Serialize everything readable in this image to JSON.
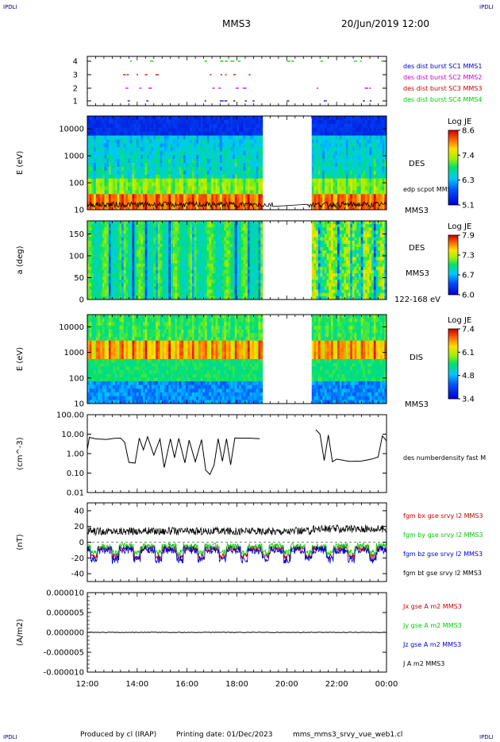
{
  "header": {
    "corner_left": "IPDLI",
    "corner_right": "IPDLI",
    "title": "MMS3",
    "date": "20/Jun/2019 12:00"
  },
  "footer": {
    "produced": "Produced by cl (IRAP)",
    "printing": "Printing date: 01/Dec/2023",
    "file": "mms_mms3_srvy_vue_web1.cl",
    "corner_left": "IPDLI",
    "corner_right": "IPDLI"
  },
  "colors": {
    "mms1": "#0000cc",
    "mms2": "#cc00cc",
    "mms3": "#cc0000",
    "mms4": "#00cc00"
  },
  "chart_data": [
    {
      "type": "scatter",
      "id": "burst",
      "yticks": [
        "1",
        "2",
        "3",
        "4"
      ],
      "series": [
        {
          "name": "des dist burst SC1 MMS1",
          "color": "#0000cc"
        },
        {
          "name": "des dist burst SC2 MMS2",
          "color": "#cc00cc"
        },
        {
          "name": "des dist burst SC3 MMS3",
          "color": "#cc0000"
        },
        {
          "name": "des dist burst SC4 MMS4",
          "color": "#00cc00"
        }
      ]
    },
    {
      "type": "heatmap",
      "id": "des_e",
      "ylabel": "E (eV)",
      "yticks": [
        "10",
        "100",
        "1000",
        "10000"
      ],
      "ylim": [
        10,
        30000
      ],
      "label": "DES",
      "sublabel": "MMS3",
      "overlay_label": "edp scpot MMS3",
      "colorbar": {
        "title": "Log JE",
        "ticks": [
          "8.6",
          "7.4",
          "6.3",
          "5.1"
        ],
        "range": [
          5.1,
          8.6
        ]
      },
      "gaps": [
        [
          "19:00",
          "21:00"
        ]
      ]
    },
    {
      "type": "heatmap",
      "id": "des_pa",
      "ylabel": "a (deg)",
      "yticks": [
        "0",
        "50",
        "100",
        "150"
      ],
      "ylim": [
        0,
        180
      ],
      "label": "DES",
      "sublabel": "MMS3",
      "energy_range": "122-168 eV",
      "colorbar": {
        "title": "Log JE",
        "ticks": [
          "7.9",
          "7.3",
          "6.7",
          "6.0"
        ],
        "range": [
          6.0,
          7.9
        ]
      },
      "gaps": [
        [
          "19:00",
          "21:00"
        ]
      ]
    },
    {
      "type": "heatmap",
      "id": "dis_e",
      "ylabel": "E (eV)",
      "yticks": [
        "10",
        "100",
        "1000",
        "10000"
      ],
      "ylim": [
        10,
        30000
      ],
      "label": "DIS",
      "sublabel": "MMS3",
      "colorbar": {
        "title": "Log JE",
        "ticks": [
          "7.4",
          "6.1",
          "4.8",
          "3.4"
        ],
        "range": [
          3.4,
          7.4
        ]
      },
      "gaps": [
        [
          "19:00",
          "21:00"
        ]
      ]
    },
    {
      "type": "line",
      "id": "density",
      "ylabel": "(cm^-3)",
      "yticks": [
        "100.00",
        "10.00",
        "1.00",
        "0.10",
        "0.01"
      ],
      "ylim": [
        0.01,
        100
      ],
      "series": [
        {
          "name": "des numberdensity fast M",
          "color": "#000000"
        }
      ],
      "points": [
        [
          "12:00",
          1.5
        ],
        [
          "12:05",
          6.5
        ],
        [
          "12:20",
          7.0
        ],
        [
          "12:45",
          6.0
        ],
        [
          "13:05",
          7.5
        ],
        [
          "13:20",
          6.0
        ],
        [
          "13:30",
          4.0
        ],
        [
          "13:40",
          0.4
        ],
        [
          "13:55",
          0.3
        ],
        [
          "14:05",
          6.0
        ],
        [
          "14:15",
          1.5
        ],
        [
          "14:25",
          6.5
        ],
        [
          "14:40",
          0.9
        ],
        [
          "14:55",
          5.5
        ],
        [
          "15:05",
          0.2
        ],
        [
          "15:20",
          5.0
        ],
        [
          "15:30",
          0.6
        ],
        [
          "15:40",
          5.5
        ],
        [
          "15:55",
          0.3
        ],
        [
          "16:05",
          6.0
        ],
        [
          "16:20",
          0.4
        ],
        [
          "16:35",
          5.5
        ],
        [
          "16:45",
          0.15
        ],
        [
          "16:55",
          0.08
        ],
        [
          "17:05",
          0.3
        ],
        [
          "17:15",
          5.0
        ],
        [
          "17:25",
          0.5
        ],
        [
          "17:35",
          6.0
        ],
        [
          "17:45",
          0.3
        ],
        [
          "17:55",
          5.5
        ],
        [
          "18:05",
          5.8
        ],
        [
          "18:30",
          6.0
        ],
        [
          "18:55",
          5.5
        ],
        [
          "21:10",
          18.0
        ],
        [
          "21:20",
          10.0
        ],
        [
          "21:30",
          0.4
        ],
        [
          "21:40",
          8.0
        ],
        [
          "21:50",
          0.4
        ],
        [
          "22:00",
          0.5
        ],
        [
          "22:30",
          0.4
        ],
        [
          "23:00",
          0.4
        ],
        [
          "23:25",
          0.5
        ],
        [
          "23:40",
          0.6
        ],
        [
          "23:50",
          8.0
        ],
        [
          "00:00",
          5.0
        ]
      ]
    },
    {
      "type": "line",
      "id": "fgm",
      "ylabel": "(nT)",
      "yticks": [
        "40",
        "20",
        "0",
        "-20",
        "-40"
      ],
      "ylim": [
        -50,
        50
      ],
      "series": [
        {
          "name": "fgm bx gse srvy l2 MMS3",
          "color": "#cc0000"
        },
        {
          "name": "fgm by gse srvy l2 MMS3",
          "color": "#00cc00"
        },
        {
          "name": "fgm bz gse srvy l2 MMS3",
          "color": "#0000cc"
        },
        {
          "name": "fgm bt gse srvy l2 MMS3",
          "color": "#000000"
        }
      ]
    },
    {
      "type": "line",
      "id": "current",
      "ylabel": "(A/m2)",
      "yticks": [
        "0.000010",
        "0.000005",
        "0.000000",
        "-0.000005",
        "-0.000010"
      ],
      "ylim": [
        -1e-05,
        1e-05
      ],
      "series": [
        {
          "name": "Jx gse A m2 MMS3",
          "color": "#cc0000"
        },
        {
          "name": "Jy gse A m2 MMS3",
          "color": "#00cc00"
        },
        {
          "name": "Jz gse A m2 MMS3",
          "color": "#0000cc"
        },
        {
          "name": "J A m2 MMS3",
          "color": "#000000"
        }
      ]
    }
  ],
  "xaxis": {
    "ticks": [
      "12:00",
      "14:00",
      "16:00",
      "18:00",
      "20:00",
      "22:00",
      "00:00"
    ]
  }
}
